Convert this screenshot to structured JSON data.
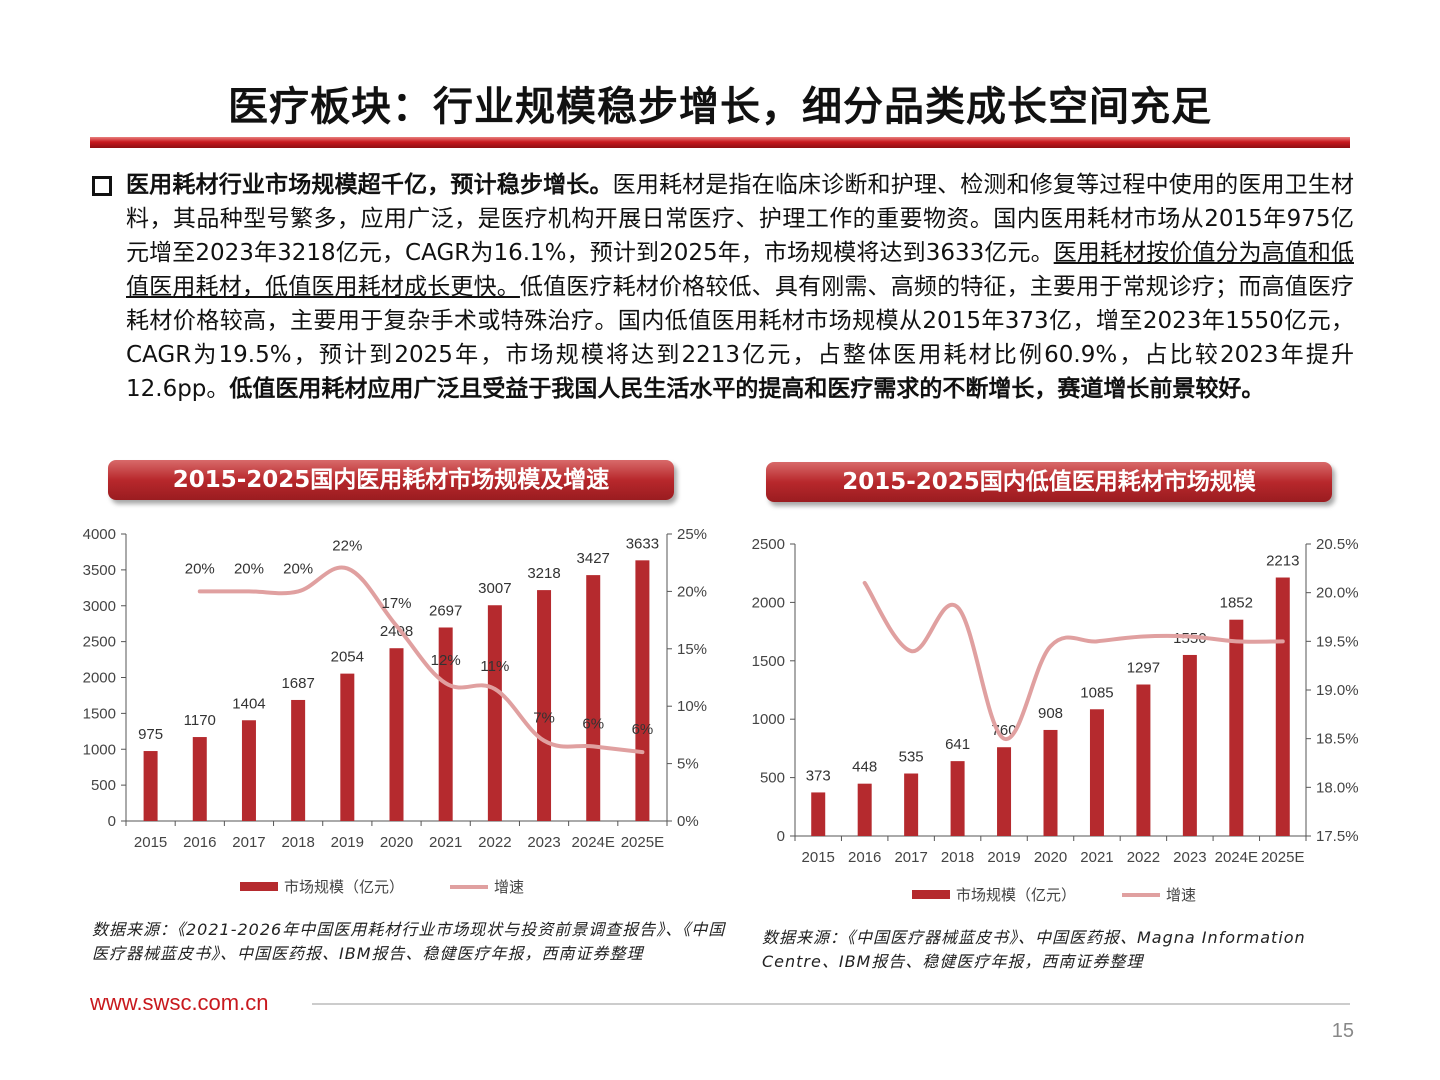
{
  "title": "医疗板块：行业规模稳步增长，细分品类成长空间充足",
  "paragraph": {
    "seg1_bold": "医用耗材行业市场规模超千亿，预计稳步增长。",
    "seg2": "医用耗材是指在临床诊断和护理、检测和修复等过程中使用的医用卫生材料，其品种型号繁多，应用广泛，是医疗机构开展日常医疗、护理工作的重要物资。国内医用耗材市场从2015年975亿元增至2023年3218亿元，CAGR为16.1%，预计到2025年，市场规模将达到3633亿元。",
    "seg3_underline": "医用耗材按价值分为高值和低值医用耗材，低值医用耗材成长更快。",
    "seg4": "低值医疗耗材价格较低、具有刚需、高频的特征，主要用于常规诊疗；而高值医疗耗材价格较高，主要用于复杂手术或特殊治疗。国内低值医用耗材市场规模从2015年373亿，增至2023年1550亿元，CAGR为19.5%，预计到2025年，市场规模将达到2213亿元，占整体医用耗材比例60.9%，占比较2023年提升12.6pp。",
    "seg5_bold": "低值医用耗材应用广泛且受益于我国人民生活水平的提高和医疗需求的不断增长，赛道增长前景较好。"
  },
  "chart_data": [
    {
      "type": "bar",
      "title": "2015-2025国内医用耗材市场规模及增速",
      "categories": [
        "2015",
        "2016",
        "2017",
        "2018",
        "2019",
        "2020",
        "2021",
        "2022",
        "2023",
        "2024E",
        "2025E"
      ],
      "series": [
        {
          "name": "市场规模（亿元）",
          "type": "bar",
          "axis": "left",
          "values": [
            975,
            1170,
            1404,
            1687,
            2054,
            2408,
            2697,
            3007,
            3218,
            3427,
            3633
          ],
          "labels": [
            "975",
            "1170",
            "1404",
            "1687",
            "2054",
            "2408",
            "2697",
            "3007",
            "3218",
            "3427",
            "3633"
          ]
        },
        {
          "name": "增速",
          "type": "line",
          "axis": "right",
          "values": [
            null,
            20,
            20,
            20,
            22,
            17,
            12,
            11.5,
            7,
            6.5,
            6
          ],
          "labels": [
            "",
            "20%",
            "20%",
            "20%",
            "22%",
            "17%",
            "12%",
            "11%",
            "7%",
            "6%",
            "6%"
          ]
        }
      ],
      "ylim_left": [
        0,
        4000
      ],
      "yticks_left": [
        "0",
        "500",
        "1000",
        "1500",
        "2000",
        "2500",
        "3000",
        "3500",
        "4000"
      ],
      "ylim_right": [
        0,
        25
      ],
      "yticks_right": [
        "0%",
        "5%",
        "10%",
        "15%",
        "20%",
        "25%"
      ],
      "legend": "bottom",
      "grid": false
    },
    {
      "type": "bar",
      "title": "2015-2025国内低值医用耗材市场规模",
      "categories": [
        "2015",
        "2016",
        "2017",
        "2018",
        "2019",
        "2020",
        "2021",
        "2022",
        "2023",
        "2024E",
        "2025E"
      ],
      "series": [
        {
          "name": "市场规模（亿元）",
          "type": "bar",
          "axis": "left",
          "values": [
            373,
            448,
            535,
            641,
            760,
            908,
            1085,
            1297,
            1550,
            1852,
            2213
          ],
          "labels": [
            "373",
            "448",
            "535",
            "641",
            "760",
            "908",
            "1085",
            "1297",
            "1550",
            "1852",
            "2213"
          ]
        },
        {
          "name": "增速",
          "type": "line",
          "axis": "right",
          "values": [
            null,
            20.1,
            19.4,
            19.85,
            18.5,
            19.45,
            19.5,
            19.55,
            19.55,
            19.5,
            19.5
          ]
        }
      ],
      "ylim_left": [
        0,
        2500
      ],
      "yticks_left": [
        "0",
        "500",
        "1000",
        "1500",
        "2000",
        "2500"
      ],
      "ylim_right": [
        17.5,
        20.5
      ],
      "yticks_right": [
        "17.5%",
        "18.0%",
        "18.5%",
        "19.0%",
        "19.5%",
        "20.0%",
        "20.5%"
      ],
      "legend": "bottom",
      "grid": false
    }
  ],
  "sources": {
    "left": "数据来源：《2021-2026年中国医用耗材行业市场现状与投资前景调查报告》、《中国医疗器械蓝皮书》、中国医药报、IBM报告、稳健医疗年报，西南证券整理",
    "right": "数据来源：《中国医疗器械蓝皮书》、中国医药报、Magna Information Centre、IBM报告、稳健医疗年报，西南证券整理"
  },
  "footer": {
    "url": "www.swsc.com.cn",
    "page": "15"
  },
  "colors": {
    "bar": "#b52a2e",
    "line": "#e0a0a0",
    "accent": "#c8191e"
  }
}
